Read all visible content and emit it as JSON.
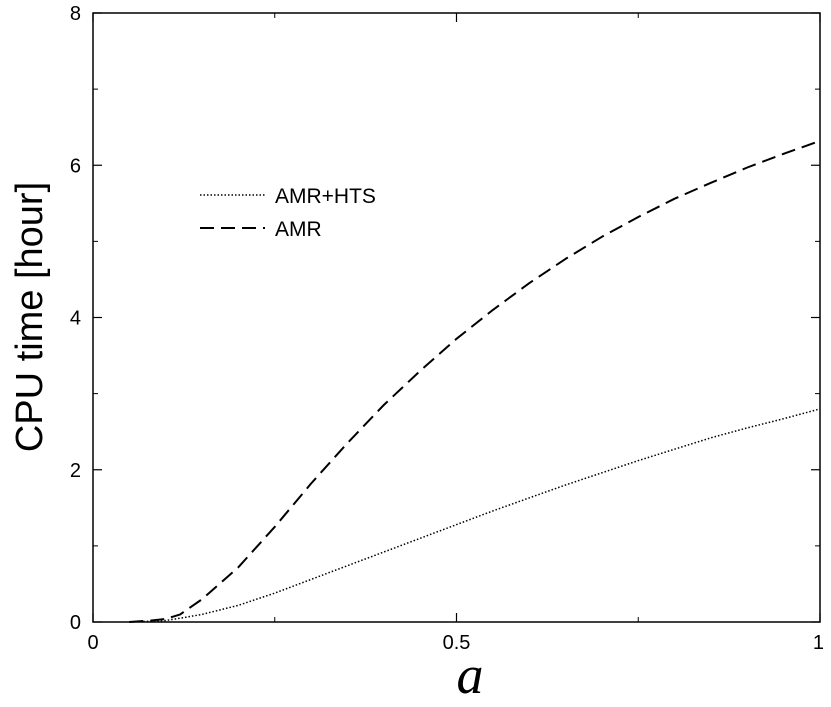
{
  "chart_data": {
    "type": "line",
    "xlabel": "a",
    "ylabel": "CPU time [hour]",
    "xlim": [
      0,
      1
    ],
    "ylim": [
      0,
      8
    ],
    "xticks": [
      0,
      0.5,
      1
    ],
    "xtick_labels": [
      "0",
      "0.5",
      "1"
    ],
    "yticks": [
      0,
      2,
      4,
      6,
      8
    ],
    "ytick_labels": [
      "0",
      "2",
      "4",
      "6",
      "8"
    ],
    "grid": false,
    "legend_position": "upper-left",
    "series": [
      {
        "name": "AMR+HTS",
        "style": "dotted",
        "x": [
          0.05,
          0.08,
          0.1,
          0.12,
          0.15,
          0.2,
          0.25,
          0.3,
          0.35,
          0.4,
          0.45,
          0.5,
          0.55,
          0.6,
          0.65,
          0.7,
          0.75,
          0.8,
          0.85,
          0.9,
          0.95,
          1.0
        ],
        "y": [
          0.0,
          0.01,
          0.02,
          0.05,
          0.1,
          0.22,
          0.38,
          0.56,
          0.74,
          0.92,
          1.1,
          1.28,
          1.46,
          1.63,
          1.8,
          1.96,
          2.12,
          2.27,
          2.42,
          2.55,
          2.67,
          2.8
        ]
      },
      {
        "name": "AMR",
        "style": "dashed",
        "x": [
          0.05,
          0.08,
          0.1,
          0.12,
          0.15,
          0.2,
          0.25,
          0.3,
          0.35,
          0.4,
          0.45,
          0.5,
          0.55,
          0.6,
          0.65,
          0.7,
          0.75,
          0.8,
          0.85,
          0.9,
          0.95,
          1.0
        ],
        "y": [
          0.0,
          0.02,
          0.04,
          0.1,
          0.3,
          0.72,
          1.25,
          1.82,
          2.35,
          2.85,
          3.3,
          3.72,
          4.1,
          4.45,
          4.77,
          5.06,
          5.32,
          5.56,
          5.77,
          5.97,
          6.15,
          6.32
        ]
      }
    ]
  }
}
